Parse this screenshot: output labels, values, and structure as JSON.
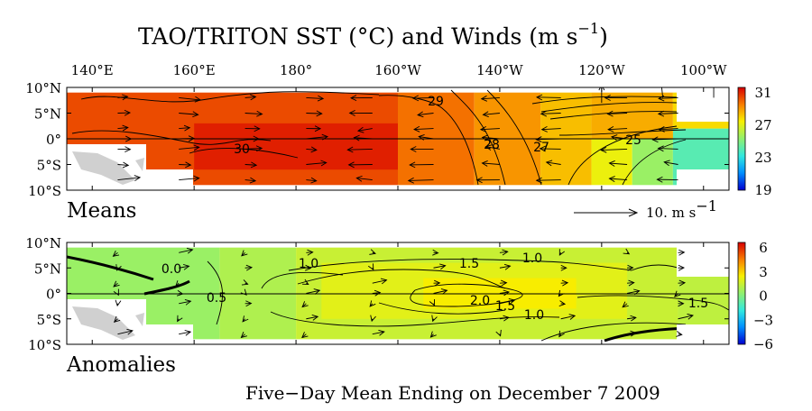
{
  "title": "TAO/TRITON SST (°C) and Winds (m s",
  "title_exponent": "−1",
  "footer": "Five−Day Mean Ending on December 7 2009",
  "key_label": "10.  m s",
  "key_exponent": "−1",
  "chart_data": [
    {
      "type": "heatmap",
      "panel_label": "Means",
      "variable": "SST",
      "units": "°C",
      "x_ticks": [
        "140°E",
        "160°E",
        "180°",
        "160°W",
        "140°W",
        "120°W",
        "100°W"
      ],
      "y_ticks": [
        "10°N",
        "5°N",
        "0°",
        "5°S",
        "10°S"
      ],
      "xlim": [
        "135°E",
        "95°W"
      ],
      "ylim": [
        "10°S",
        "10°N"
      ],
      "colorbar_range": [
        19,
        31
      ],
      "colorbar_ticks": [
        "31",
        "27",
        "23",
        "19"
      ],
      "contour_labels": [
        "29",
        "30",
        "28",
        "27",
        "25"
      ],
      "regions": [
        {
          "lon": [
            135,
            200
          ],
          "lat": [
            -9,
            9
          ],
          "value": 29.8
        },
        {
          "lon": [
            160,
            200
          ],
          "lat": [
            -6,
            3
          ],
          "value": 30.5
        },
        {
          "lon": [
            200,
            215
          ],
          "lat": [
            -9,
            9
          ],
          "value": 29.2
        },
        {
          "lon": [
            215,
            228
          ],
          "lat": [
            -9,
            9
          ],
          "value": 28.6
        },
        {
          "lon": [
            228,
            238
          ],
          "lat": [
            -9,
            9
          ],
          "value": 27.9
        },
        {
          "lon": [
            238,
            246
          ],
          "lat": [
            -9,
            0
          ],
          "value": 26.8
        },
        {
          "lon": [
            246,
            254
          ],
          "lat": [
            -9,
            1
          ],
          "value": 25.2
        },
        {
          "lon": [
            254,
            265
          ],
          "lat": [
            -9,
            2
          ],
          "value": 23.8
        },
        {
          "lon": [
            238,
            254
          ],
          "lat": [
            0,
            9
          ],
          "value": 28.2
        },
        {
          "lon": [
            254,
            265
          ],
          "lat": [
            2,
            9
          ],
          "value": 27.4
        }
      ]
    },
    {
      "type": "heatmap",
      "panel_label": "Anomalies",
      "variable": "SST anomaly",
      "units": "°C",
      "x_ticks": [
        "140°E",
        "160°E",
        "180°",
        "160°W",
        "140°W",
        "120°W",
        "100°W"
      ],
      "y_ticks": [
        "10°N",
        "5°N",
        "0°",
        "5°S",
        "10°S"
      ],
      "xlim": [
        "135°E",
        "95°W"
      ],
      "ylim": [
        "10°S",
        "10°N"
      ],
      "colorbar_range": [
        -6,
        6
      ],
      "colorbar_ticks": [
        "6",
        "3",
        "0",
        "−3",
        "−6"
      ],
      "contour_labels": [
        "0.0",
        "0.5",
        "1.0",
        "1.5",
        "2.0",
        "1.0",
        "1.5",
        "1.0",
        "1.5"
      ],
      "regions": [
        {
          "lon": [
            135,
            165
          ],
          "lat": [
            -9,
            9
          ],
          "value": 0.2
        },
        {
          "lon": [
            165,
            180
          ],
          "lat": [
            -9,
            9
          ],
          "value": 0.6
        },
        {
          "lon": [
            180,
            255
          ],
          "lat": [
            -9,
            9
          ],
          "value": 1.1
        },
        {
          "lon": [
            185,
            245
          ],
          "lat": [
            -5,
            6
          ],
          "value": 1.6
        },
        {
          "lon": [
            205,
            235
          ],
          "lat": [
            -3,
            3
          ],
          "value": 2.1
        },
        {
          "lon": [
            255,
            265
          ],
          "lat": [
            -9,
            9
          ],
          "value": 0.9
        }
      ]
    }
  ],
  "wind_key_speed": 10
}
